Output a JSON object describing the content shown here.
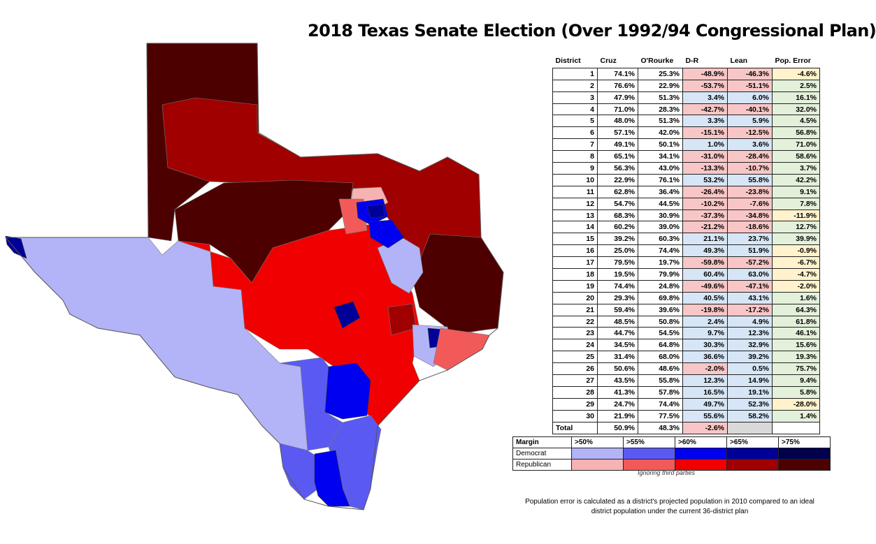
{
  "title": "2018 Texas Senate Election (Over 1992/94 Congressional Plan)",
  "table": {
    "headers": [
      "District",
      "Cruz",
      "O'Rourke",
      "D-R",
      "Lean",
      "Pop. Error"
    ],
    "rows": [
      [
        "1",
        "74.1%",
        "25.3%",
        "-48.9%",
        "-46.3%",
        "-4.6%"
      ],
      [
        "2",
        "76.6%",
        "22.9%",
        "-53.7%",
        "-51.1%",
        "2.5%"
      ],
      [
        "3",
        "47.9%",
        "51.3%",
        "3.4%",
        "6.0%",
        "16.1%"
      ],
      [
        "4",
        "71.0%",
        "28.3%",
        "-42.7%",
        "-40.1%",
        "32.0%"
      ],
      [
        "5",
        "48.0%",
        "51.3%",
        "3.3%",
        "5.9%",
        "4.5%"
      ],
      [
        "6",
        "57.1%",
        "42.0%",
        "-15.1%",
        "-12.5%",
        "56.8%"
      ],
      [
        "7",
        "49.1%",
        "50.1%",
        "1.0%",
        "3.6%",
        "71.0%"
      ],
      [
        "8",
        "65.1%",
        "34.1%",
        "-31.0%",
        "-28.4%",
        "58.6%"
      ],
      [
        "9",
        "56.3%",
        "43.0%",
        "-13.3%",
        "-10.7%",
        "3.7%"
      ],
      [
        "10",
        "22.9%",
        "76.1%",
        "53.2%",
        "55.8%",
        "42.2%"
      ],
      [
        "11",
        "62.8%",
        "36.4%",
        "-26.4%",
        "-23.8%",
        "9.1%"
      ],
      [
        "12",
        "54.7%",
        "44.5%",
        "-10.2%",
        "-7.6%",
        "7.8%"
      ],
      [
        "13",
        "68.3%",
        "30.9%",
        "-37.3%",
        "-34.8%",
        "-11.9%"
      ],
      [
        "14",
        "60.2%",
        "39.0%",
        "-21.2%",
        "-18.6%",
        "12.7%"
      ],
      [
        "15",
        "39.2%",
        "60.3%",
        "21.1%",
        "23.7%",
        "39.9%"
      ],
      [
        "16",
        "25.0%",
        "74.4%",
        "49.3%",
        "51.9%",
        "-0.9%"
      ],
      [
        "17",
        "79.5%",
        "19.7%",
        "-59.8%",
        "-57.2%",
        "-6.7%"
      ],
      [
        "18",
        "19.5%",
        "79.9%",
        "60.4%",
        "63.0%",
        "-4.7%"
      ],
      [
        "19",
        "74.4%",
        "24.8%",
        "-49.6%",
        "-47.1%",
        "-2.0%"
      ],
      [
        "20",
        "29.3%",
        "69.8%",
        "40.5%",
        "43.1%",
        "1.6%"
      ],
      [
        "21",
        "59.4%",
        "39.6%",
        "-19.8%",
        "-17.2%",
        "64.3%"
      ],
      [
        "22",
        "48.5%",
        "50.8%",
        "2.4%",
        "4.9%",
        "61.8%"
      ],
      [
        "23",
        "44.7%",
        "54.5%",
        "9.7%",
        "12.3%",
        "46.1%"
      ],
      [
        "24",
        "34.5%",
        "64.8%",
        "30.3%",
        "32.9%",
        "15.6%"
      ],
      [
        "25",
        "31.4%",
        "68.0%",
        "36.6%",
        "39.2%",
        "19.3%"
      ],
      [
        "26",
        "50.6%",
        "48.6%",
        "-2.0%",
        "0.5%",
        "75.7%"
      ],
      [
        "27",
        "43.5%",
        "55.8%",
        "12.3%",
        "14.9%",
        "9.4%"
      ],
      [
        "28",
        "41.3%",
        "57.8%",
        "16.5%",
        "19.1%",
        "5.8%"
      ],
      [
        "29",
        "24.7%",
        "74.4%",
        "49.7%",
        "52.3%",
        "-28.0%"
      ],
      [
        "30",
        "21.9%",
        "77.5%",
        "55.6%",
        "58.2%",
        "1.4%"
      ]
    ],
    "total": [
      "Total",
      "50.9%",
      "48.3%",
      "-2.6%",
      "",
      ""
    ]
  },
  "legend": {
    "header": "Margin",
    "bins": [
      ">50%",
      ">55%",
      ">60%",
      ">65%",
      ">75%"
    ],
    "rows": [
      {
        "label": "Democrat",
        "colors": [
          "#b3b3f7",
          "#5a5af2",
          "#0000f0",
          "#000099",
          "#00004d"
        ]
      },
      {
        "label": "Republican",
        "colors": [
          "#f7b3b3",
          "#f25a5a",
          "#f00000",
          "#a00000",
          "#4d0000"
        ]
      }
    ],
    "note": "Ignoring third parties"
  },
  "footnote": "Population error is calculated as a district's projected population in 2010 compared to an ideal district population under the current 36-district plan"
}
